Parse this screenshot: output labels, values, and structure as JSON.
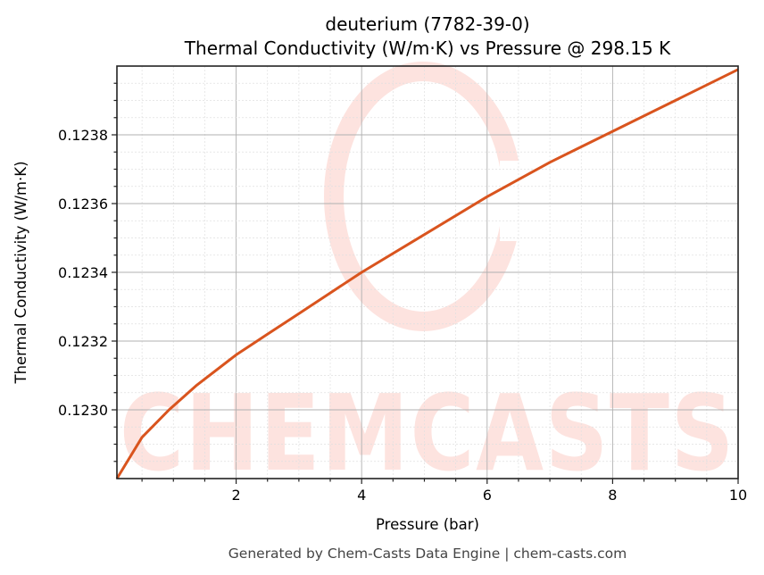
{
  "chart": {
    "title_line1": "deuterium (7782-39-0)",
    "title_line2": "Thermal Conductivity (W/m·K) vs Pressure @ 298.15 K",
    "xlabel": "Pressure (bar)",
    "ylabel": "Thermal Conductivity (W/m·K)",
    "footer": "Generated by Chem-Casts Data Engine | chem-casts.com",
    "watermark": "CHEMCASTS",
    "line_color": "#d9541e",
    "x_ticks": [
      "2",
      "4",
      "6",
      "8",
      "10"
    ],
    "y_ticks": [
      "0.1230",
      "0.1232",
      "0.1234",
      "0.1236",
      "0.1238"
    ]
  },
  "chart_data": {
    "type": "line",
    "title": "deuterium (7782-39-0)\nThermal Conductivity (W/m·K) vs Pressure @ 298.15 K",
    "xlabel": "Pressure (bar)",
    "ylabel": "Thermal Conductivity (W/m·K)",
    "xlim": [
      0.1,
      10
    ],
    "ylim": [
      0.1228,
      0.124
    ],
    "grid": true,
    "minor_grid": true,
    "legend": null,
    "x_tick_labels": [
      "2",
      "4",
      "6",
      "8",
      "10"
    ],
    "y_tick_labels": [
      "0.1230",
      "0.1232",
      "0.1234",
      "0.1236",
      "0.1238"
    ],
    "series": [
      {
        "name": "deuterium",
        "color": "#d9541e",
        "x": [
          0.1,
          0.5,
          0.93,
          1.36,
          2.0,
          2.5,
          3.0,
          3.5,
          4.0,
          5.0,
          6.0,
          7.0,
          8.0,
          9.0,
          10.0
        ],
        "y": [
          0.1228,
          0.12292,
          0.123,
          0.12307,
          0.12316,
          0.12322,
          0.12328,
          0.12334,
          0.1234,
          0.12351,
          0.12362,
          0.12372,
          0.12381,
          0.1239,
          0.12399
        ]
      }
    ]
  }
}
